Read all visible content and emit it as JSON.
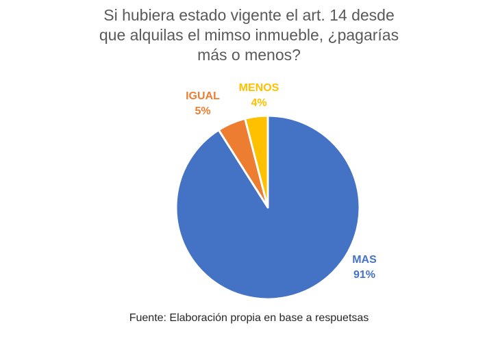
{
  "chart_data": {
    "type": "pie",
    "title_lines": [
      "Si hubiera estado vigente el art. 14 desde",
      "que alquilas el mimso inmueble, ¿pagarías",
      "más o menos?"
    ],
    "slices": [
      {
        "name": "MAS",
        "value": 91,
        "label": "91%",
        "color": "#4472C4"
      },
      {
        "name": "IGUAL",
        "value": 5,
        "label": "5%",
        "color": "#ED7D31"
      },
      {
        "name": "MENOS",
        "value": 4,
        "label": "4%",
        "color": "#FFC000"
      }
    ],
    "legend": "none"
  },
  "footer": {
    "source": "Fuente: Elaboración propia en base a respuetsas"
  }
}
